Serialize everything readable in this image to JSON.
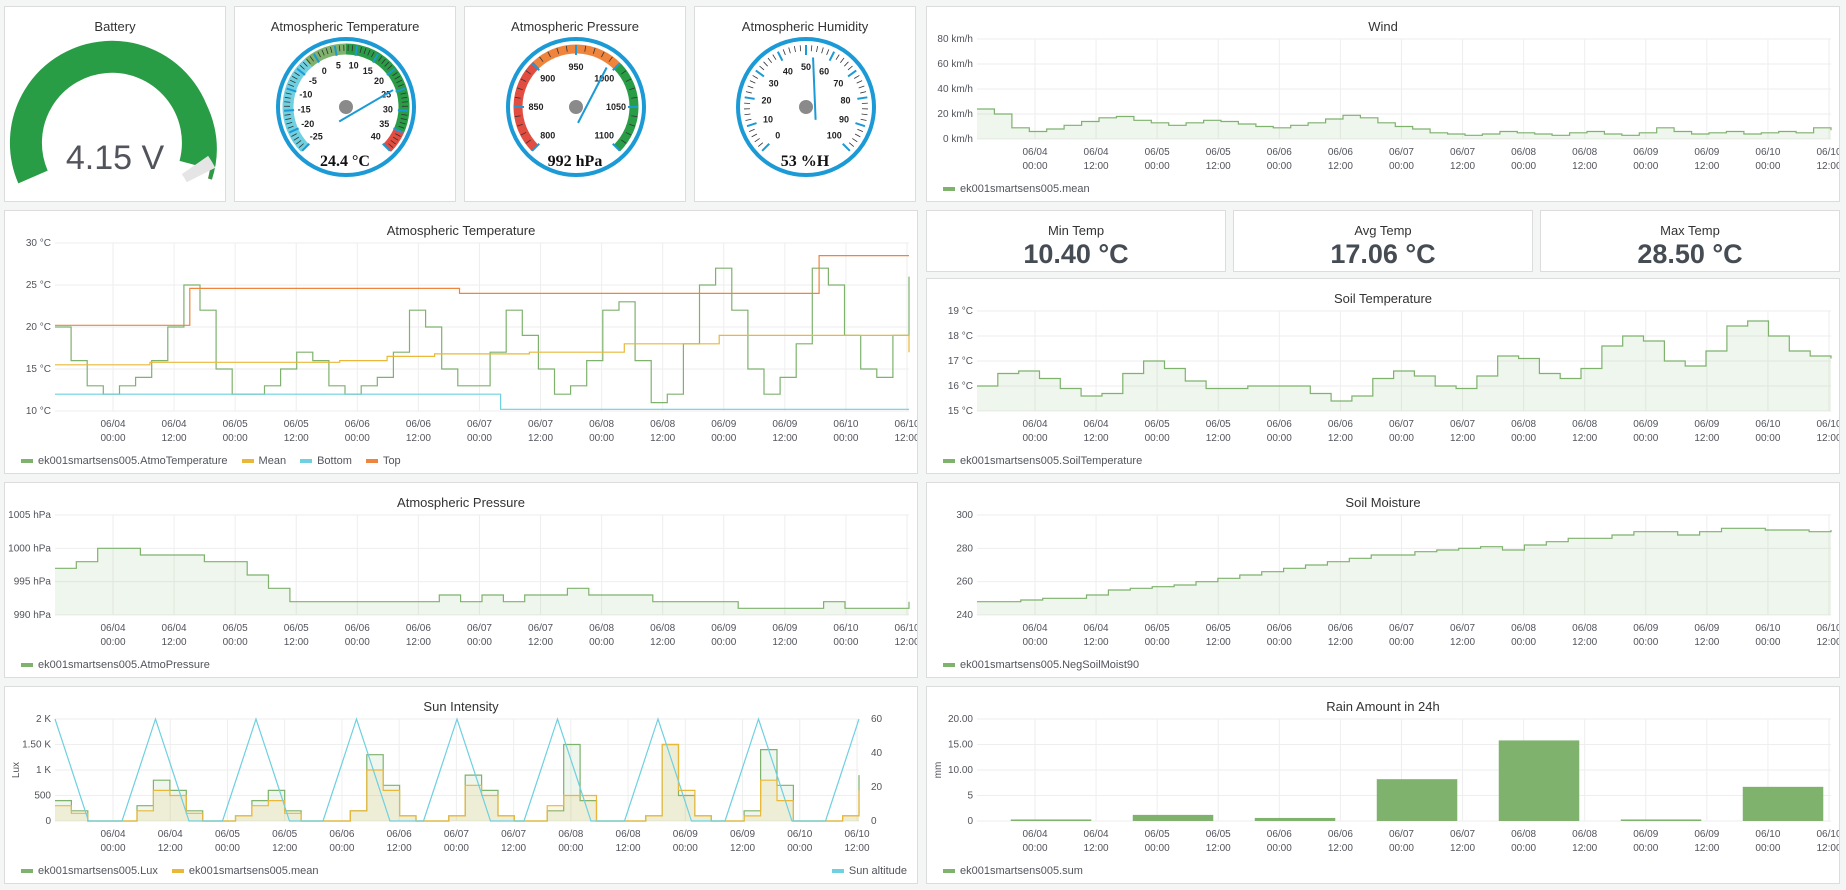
{
  "colors": {
    "green": "#7eb26d",
    "yellow": "#eab839",
    "blue": "#6ed0e0",
    "orange": "#ef843c",
    "gauge_green": "#299c46",
    "gauge_orange": "#ed8128",
    "gauge_red": "#d44a3a",
    "dial_blue": "#1b9ad6"
  },
  "battery": {
    "title": "Battery",
    "value": "4.15 V"
  },
  "atmo_temp_gauge": {
    "title": "Atmospheric Temperature",
    "value": "24.4 °C",
    "ticks": [
      "-25",
      "-20",
      "-15",
      "-10",
      "-5",
      "0",
      "5",
      "10",
      "15",
      "20",
      "25",
      "30",
      "35",
      "40"
    ]
  },
  "atmo_press_gauge": {
    "title": "Atmospheric Pressure",
    "value": "992 hPa",
    "ticks": [
      "800",
      "850",
      "900",
      "950",
      "1000",
      "1050",
      "1100"
    ]
  },
  "atmo_hum_gauge": {
    "title": "Atmospheric Humidity",
    "value": "53 %H",
    "ticks": [
      "0",
      "10",
      "20",
      "30",
      "40",
      "50",
      "60",
      "70",
      "80",
      "90",
      "100"
    ]
  },
  "stats": {
    "min": {
      "title": "Min Temp",
      "value": "10.40 °C"
    },
    "avg": {
      "title": "Avg Temp",
      "value": "17.06 °C"
    },
    "max": {
      "title": "Max Temp",
      "value": "28.50 °C"
    }
  },
  "time_ticks": [
    {
      "d": "06/04",
      "t": "00:00"
    },
    {
      "d": "06/04",
      "t": "12:00"
    },
    {
      "d": "06/05",
      "t": "00:00"
    },
    {
      "d": "06/05",
      "t": "12:00"
    },
    {
      "d": "06/06",
      "t": "00:00"
    },
    {
      "d": "06/06",
      "t": "12:00"
    },
    {
      "d": "06/07",
      "t": "00:00"
    },
    {
      "d": "06/07",
      "t": "12:00"
    },
    {
      "d": "06/08",
      "t": "00:00"
    },
    {
      "d": "06/08",
      "t": "12:00"
    },
    {
      "d": "06/09",
      "t": "00:00"
    },
    {
      "d": "06/09",
      "t": "12:00"
    },
    {
      "d": "06/10",
      "t": "00:00"
    },
    {
      "d": "06/10",
      "t": "12:00"
    }
  ],
  "chart_data": [
    {
      "id": "wind",
      "type": "area",
      "title": "Wind",
      "legend": [
        "ek001smartsens005.mean"
      ],
      "ylim": [
        0,
        80
      ],
      "yticks": [
        "0 km/h",
        "20 km/h",
        "40 km/h",
        "60 km/h",
        "80 km/h"
      ],
      "series": [
        {
          "name": "ek001smartsens005.mean",
          "values": [
            24,
            20,
            9,
            6,
            8,
            11,
            14,
            17,
            18,
            15,
            13,
            11,
            13,
            15,
            14,
            12,
            10,
            9,
            11,
            13,
            16,
            19,
            17,
            13,
            10,
            8,
            5,
            4,
            3,
            4,
            6,
            5,
            4,
            3,
            5,
            6,
            4,
            3,
            5,
            9,
            6,
            4,
            5,
            6,
            4,
            5,
            6,
            5,
            9,
            7
          ]
        }
      ]
    },
    {
      "id": "atmo_temp",
      "type": "line",
      "title": "Atmospheric Temperature",
      "legend": [
        "ek001smartsens005.AtmoTemperature",
        "Mean",
        "Bottom",
        "Top"
      ],
      "ylim": [
        10,
        30
      ],
      "yticks": [
        "10 °C",
        "15 °C",
        "20 °C",
        "25 °C",
        "30 °C"
      ],
      "series": [
        {
          "name": "ek001smartsens005.AtmoTemperature",
          "values": [
            20,
            16,
            13,
            12,
            13,
            14,
            16,
            20,
            25,
            22,
            15,
            12,
            12,
            13,
            15,
            17,
            16,
            13,
            12,
            13,
            14,
            17,
            22,
            20,
            15,
            13,
            13,
            17,
            22,
            19,
            15,
            12,
            13,
            16,
            22,
            23,
            16,
            11,
            12,
            18,
            25,
            27,
            22,
            15,
            12,
            14,
            18,
            27,
            25,
            19,
            15,
            14,
            19,
            26
          ]
        },
        {
          "name": "Mean",
          "values": [
            15.5,
            15.5,
            15.8,
            15.8,
            15.8,
            15.8,
            16,
            16.5,
            16.8,
            16.8,
            17,
            17,
            18,
            18,
            19,
            19,
            19,
            19,
            17
          ]
        },
        {
          "name": "Bottom",
          "values": [
            12,
            12,
            12,
            12,
            12,
            12,
            12,
            12,
            12,
            12,
            12,
            12,
            10.2,
            10.2,
            10.2,
            10.2,
            10.2,
            10.2,
            10.2,
            10.2,
            10.2,
            10.2,
            10.2,
            10.2
          ]
        },
        {
          "name": "Top",
          "values": [
            20.2,
            20.2,
            20.2,
            24.6,
            24.6,
            24.6,
            24.6,
            24.6,
            24.6,
            24,
            24,
            24,
            24,
            24,
            24,
            24,
            24,
            28.5,
            28.5,
            28.5
          ]
        }
      ]
    },
    {
      "id": "atmo_press",
      "type": "area",
      "title": "Atmospheric Pressure",
      "legend": [
        "ek001smartsens005.AtmoPressure"
      ],
      "ylim": [
        990,
        1005
      ],
      "yticks": [
        "990 hPa",
        "995 hPa",
        "1000 hPa",
        "1005 hPa"
      ],
      "series": [
        {
          "name": "ek001smartsens005.AtmoPressure",
          "values": [
            997,
            998,
            1000,
            1000,
            999,
            999,
            999,
            998,
            998,
            996,
            994,
            992,
            992,
            992,
            992,
            992,
            992,
            992,
            993,
            992,
            993,
            992,
            993,
            993,
            994,
            993,
            993,
            993,
            992,
            992,
            992,
            992,
            991,
            991,
            991,
            991,
            992,
            991,
            991,
            991,
            992
          ]
        }
      ]
    },
    {
      "id": "sun",
      "type": "area",
      "title": "Sun Intensity",
      "legend": [
        "ek001smartsens005.Lux",
        "ek001smartsens005.mean",
        "Sun altitude"
      ],
      "ylabel": "Lux",
      "ylim": [
        0,
        2000
      ],
      "yticks": [
        "0",
        "500",
        "1 K",
        "1.50 K",
        "2 K"
      ],
      "y2ticks": [
        "0",
        "20",
        "40",
        "60"
      ],
      "series": [
        {
          "name": "ek001smartsens005.Lux",
          "values": [
            400,
            200,
            0,
            0,
            0,
            300,
            800,
            600,
            200,
            0,
            0,
            100,
            400,
            600,
            200,
            0,
            0,
            0,
            200,
            1300,
            700,
            100,
            0,
            0,
            100,
            900,
            600,
            100,
            0,
            0,
            200,
            1500,
            400,
            0,
            0,
            0,
            100,
            1500,
            500,
            100,
            0,
            0,
            200,
            1400,
            700,
            0,
            0,
            0,
            100,
            900
          ]
        },
        {
          "name": "ek001smartsens005.mean",
          "values": [
            300,
            150,
            0,
            0,
            0,
            200,
            600,
            500,
            150,
            0,
            0,
            100,
            300,
            400,
            150,
            0,
            0,
            0,
            200,
            1000,
            600,
            100,
            0,
            0,
            100,
            700,
            500,
            100,
            0,
            0,
            300,
            500,
            500,
            0,
            0,
            0,
            100,
            1500,
            600,
            100,
            0,
            0,
            100,
            800,
            400,
            0,
            0,
            0,
            100,
            600
          ]
        },
        {
          "name": "Sun altitude",
          "values": [
            60,
            30,
            0,
            0,
            0,
            30,
            60,
            30,
            0,
            0,
            0,
            30,
            60,
            30,
            0,
            0,
            0,
            30,
            60,
            30,
            0,
            0,
            0,
            30,
            60,
            30,
            0,
            0,
            0,
            30,
            60,
            30,
            0,
            0,
            0,
            30,
            60,
            30,
            0,
            0,
            0,
            30,
            60,
            30,
            0,
            0,
            0,
            30,
            60
          ]
        }
      ]
    },
    {
      "id": "soil_temp",
      "type": "area",
      "title": "Soil Temperature",
      "legend": [
        "ek001smartsens005.SoilTemperature"
      ],
      "ylim": [
        15,
        19
      ],
      "yticks": [
        "15 °C",
        "16 °C",
        "17 °C",
        "18 °C",
        "19 °C"
      ],
      "series": [
        {
          "name": "ek001smartsens005.SoilTemperature",
          "values": [
            16,
            16.5,
            16.6,
            16.3,
            15.9,
            15.6,
            15.7,
            16.5,
            17,
            16.7,
            16.2,
            15.9,
            15.9,
            16,
            16,
            16,
            15.7,
            15.4,
            15.6,
            16.3,
            16.6,
            16.4,
            16,
            15.9,
            16.4,
            17.2,
            17.1,
            16.5,
            16.3,
            16.7,
            17.6,
            18,
            17.8,
            17,
            16.8,
            17.4,
            18.4,
            18.6,
            18,
            17.4,
            17.2,
            17.1
          ]
        }
      ]
    },
    {
      "id": "soil_moist",
      "type": "area",
      "title": "Soil Moisture",
      "legend": [
        "ek001smartsens005.NegSoilMoist90"
      ],
      "ylim": [
        240,
        300
      ],
      "yticks": [
        "240",
        "260",
        "280",
        "300"
      ],
      "series": [
        {
          "name": "ek001smartsens005.NegSoilMoist90",
          "values": [
            248,
            248,
            249,
            250,
            250,
            252,
            255,
            256,
            257,
            258,
            260,
            262,
            264,
            266,
            268,
            270,
            272,
            274,
            276,
            276,
            278,
            279,
            280,
            281,
            279,
            282,
            284,
            286,
            286,
            288,
            290,
            290,
            288,
            290,
            292,
            292,
            291,
            291,
            290,
            291
          ]
        }
      ]
    },
    {
      "id": "rain",
      "type": "bar",
      "title": "Rain Amount in 24h",
      "legend": [
        "ek001smartsens005.sum"
      ],
      "ylabel": "mm",
      "ylim": [
        0,
        20
      ],
      "yticks": [
        "0",
        "5",
        "10.00",
        "15.00",
        "20.00"
      ],
      "categories": [
        "06/04",
        "06/05",
        "06/06",
        "06/07",
        "06/08",
        "06/09",
        "06/10"
      ],
      "series": [
        {
          "name": "ek001smartsens005.sum",
          "values": [
            0.3,
            1.2,
            0.6,
            8.2,
            15.8,
            0.3,
            6.7
          ]
        }
      ]
    }
  ]
}
